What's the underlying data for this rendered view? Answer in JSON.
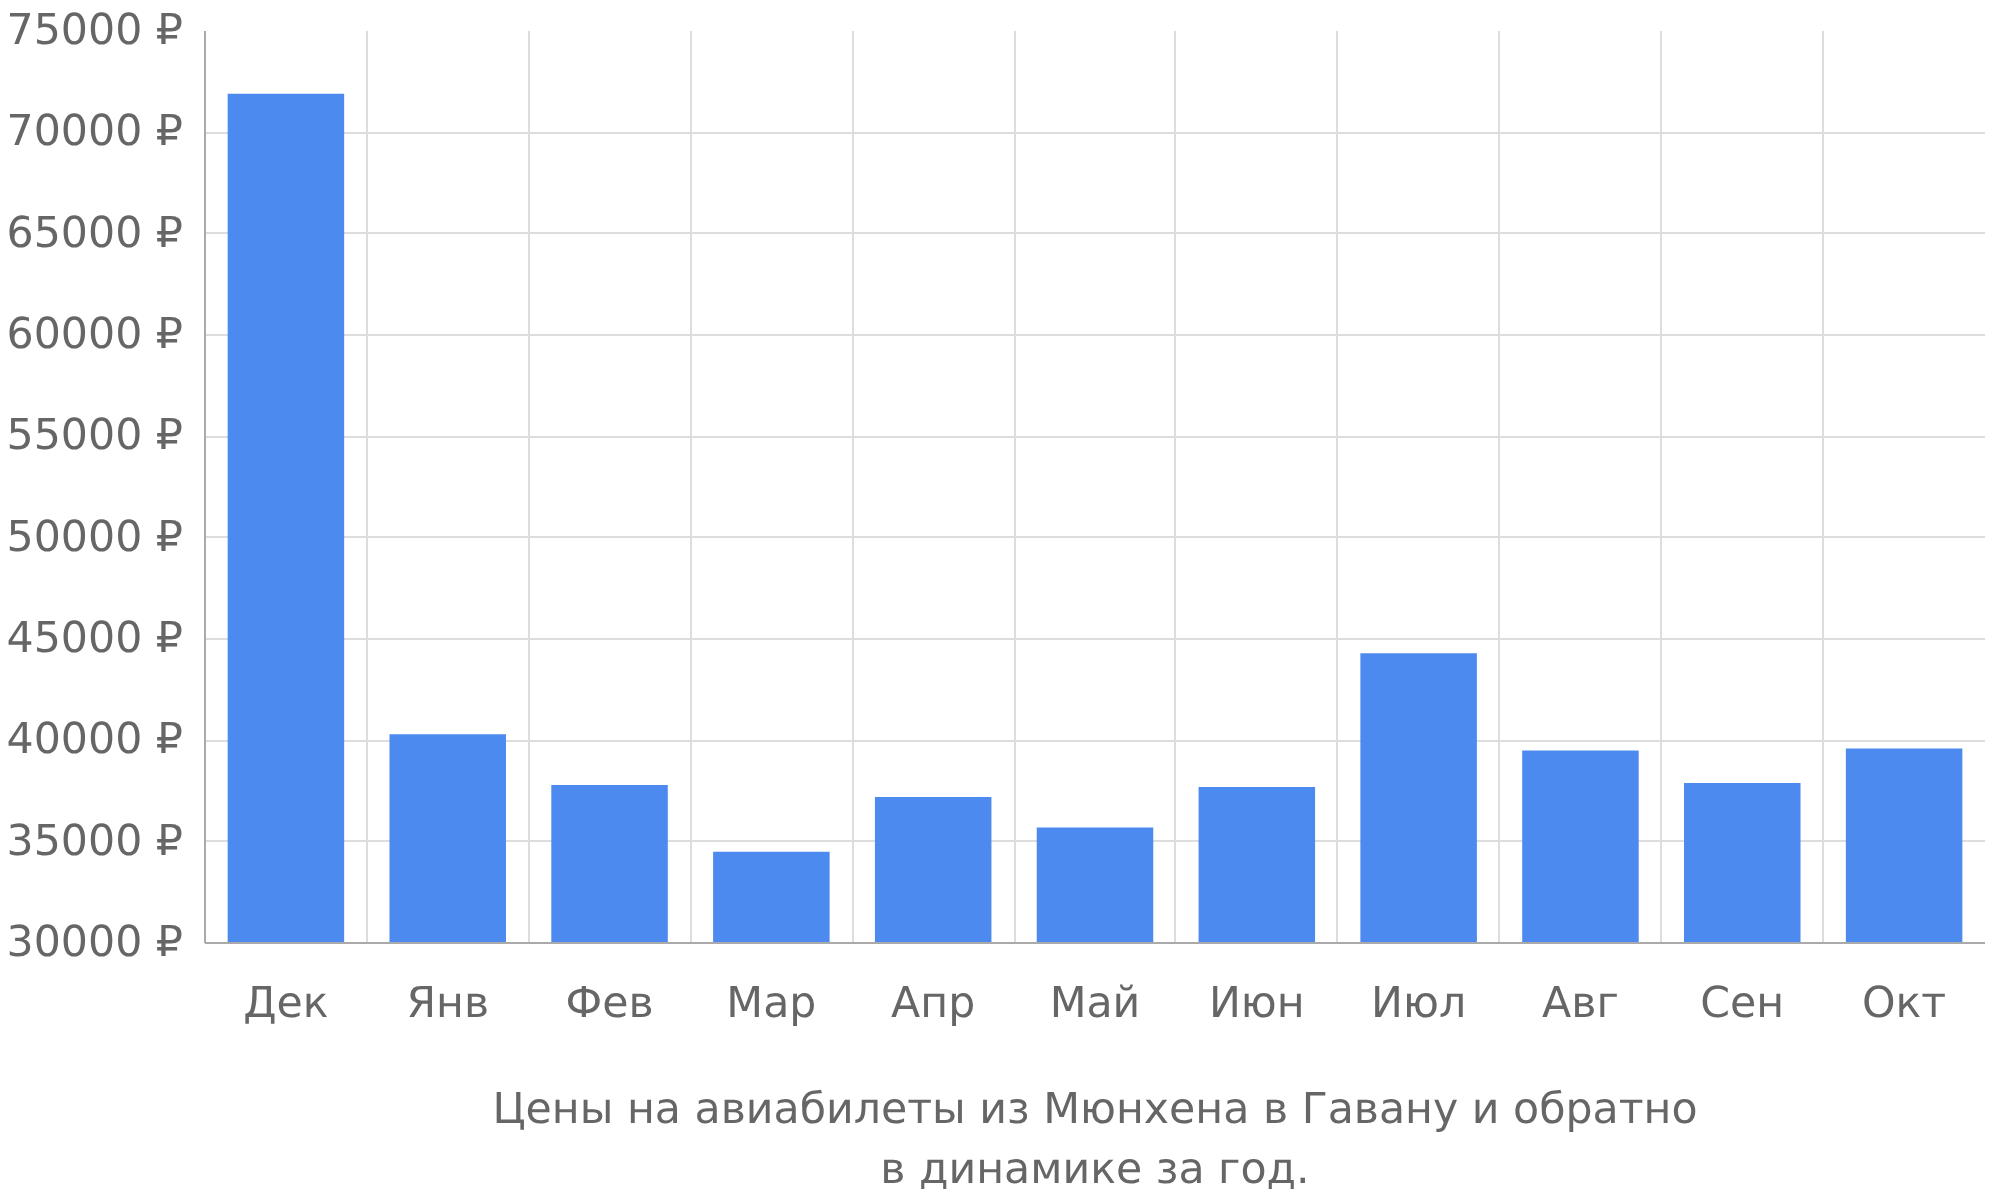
{
  "chart_data": {
    "type": "bar",
    "xlabel": "Цены на авиабилеты из Мюнхена в Гавану и обратно\nв динамике за год.",
    "categories": [
      "Дек",
      "Янв",
      "Фев",
      "Мар",
      "Апр",
      "Май",
      "Июн",
      "Июл",
      "Авг",
      "Сен",
      "Окт"
    ],
    "values": [
      71900,
      40300,
      37800,
      34500,
      37200,
      35700,
      37700,
      44300,
      39500,
      37900,
      39600
    ],
    "color": "#4d8af0",
    "ylim": [
      30000,
      75000
    ],
    "yticks": [
      {
        "value": 30000,
        "label": "30000 ₽"
      },
      {
        "value": 35000,
        "label": "35000 ₽"
      },
      {
        "value": 40000,
        "label": "40000 ₽"
      },
      {
        "value": 45000,
        "label": "45000 ₽"
      },
      {
        "value": 50000,
        "label": "50000 ₽"
      },
      {
        "value": 55000,
        "label": "55000 ₽"
      },
      {
        "value": 60000,
        "label": "60000 ₽"
      },
      {
        "value": 65000,
        "label": "65000 ₽"
      },
      {
        "value": 70000,
        "label": "70000 ₽"
      },
      {
        "value": 75000,
        "label": "75000 ₽"
      }
    ],
    "grid": true
  }
}
